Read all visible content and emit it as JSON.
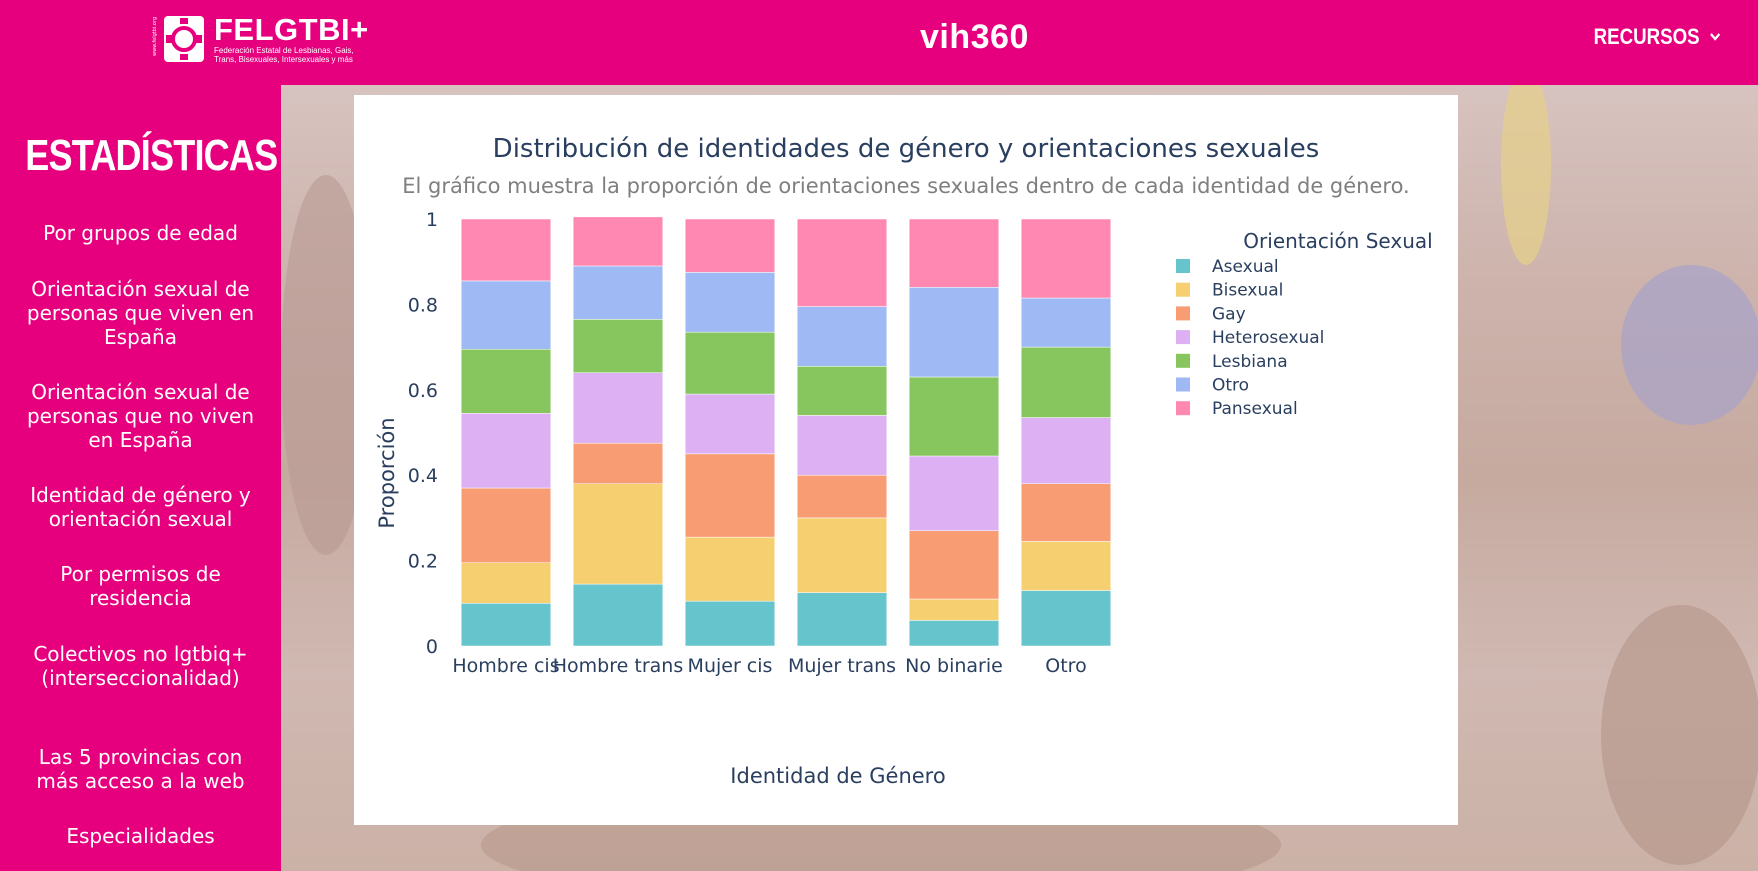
{
  "header": {
    "logo_name": "FELGTBI+",
    "logo_subtitle": "Federación Estatal de Lesbianas, Gais, Trans, Bisexuales, Intersexuales y más",
    "logo_vertical": "www.felgtbi.org",
    "site_title": "vih360",
    "resources_label": "RECURSOS"
  },
  "sidebar": {
    "title": "ESTADÍSTICAS",
    "items": [
      {
        "label": "Por grupos de edad"
      },
      {
        "label": "Orientación sexual de personas que viven en España"
      },
      {
        "label": "Orientación sexual de personas que no viven en España"
      },
      {
        "label": "Identidad de género y orientación sexual"
      },
      {
        "label": "Por permisos de residencia"
      },
      {
        "label": "Colectivos no lgtbiq+ (interseccionalidad)"
      },
      {
        "label": "Las 5 provincias con más acceso a la web"
      },
      {
        "label": "Especialidades"
      }
    ]
  },
  "colors": {
    "brand": "#e6007e",
    "Asexual": "#66c5cc",
    "Bisexual": "#f6cf71",
    "Gay": "#f89c74",
    "Heterosexual": "#dcb0f2",
    "Lesbiana": "#87c55f",
    "Otro": "#9eb9f3",
    "Pansexual": "#fe88b1"
  },
  "chart_data": {
    "type": "bar",
    "stacked": true,
    "title": "Distribución de identidades de género y orientaciones sexuales",
    "subtitle": "El gráfico muestra la proporción de orientaciones sexuales dentro de cada identidad de género.",
    "xlabel": "Identidad de Género",
    "ylabel": "Proporción",
    "ylim": [
      0,
      1
    ],
    "yticks": [
      "0",
      "0.2",
      "0.4",
      "0.6",
      "0.8",
      "1"
    ],
    "legend_title": "Orientación Sexual",
    "legend_position": "right",
    "categories": [
      "Hombre cis",
      "Hombre trans",
      "Mujer cis",
      "Mujer trans",
      "No binarie",
      "Otro"
    ],
    "series": [
      {
        "name": "Asexual",
        "values": [
          0.1,
          0.145,
          0.105,
          0.125,
          0.06,
          0.13
        ]
      },
      {
        "name": "Bisexual",
        "values": [
          0.095,
          0.235,
          0.15,
          0.175,
          0.05,
          0.115
        ]
      },
      {
        "name": "Gay",
        "values": [
          0.175,
          0.095,
          0.195,
          0.1,
          0.16,
          0.135
        ]
      },
      {
        "name": "Heterosexual",
        "values": [
          0.175,
          0.165,
          0.14,
          0.14,
          0.175,
          0.155
        ]
      },
      {
        "name": "Lesbiana",
        "values": [
          0.15,
          0.125,
          0.145,
          0.115,
          0.185,
          0.165
        ]
      },
      {
        "name": "Otro",
        "values": [
          0.16,
          0.125,
          0.14,
          0.14,
          0.21,
          0.115
        ]
      },
      {
        "name": "Pansexual",
        "values": [
          0.145,
          0.115,
          0.125,
          0.205,
          0.16,
          0.185
        ]
      }
    ]
  }
}
